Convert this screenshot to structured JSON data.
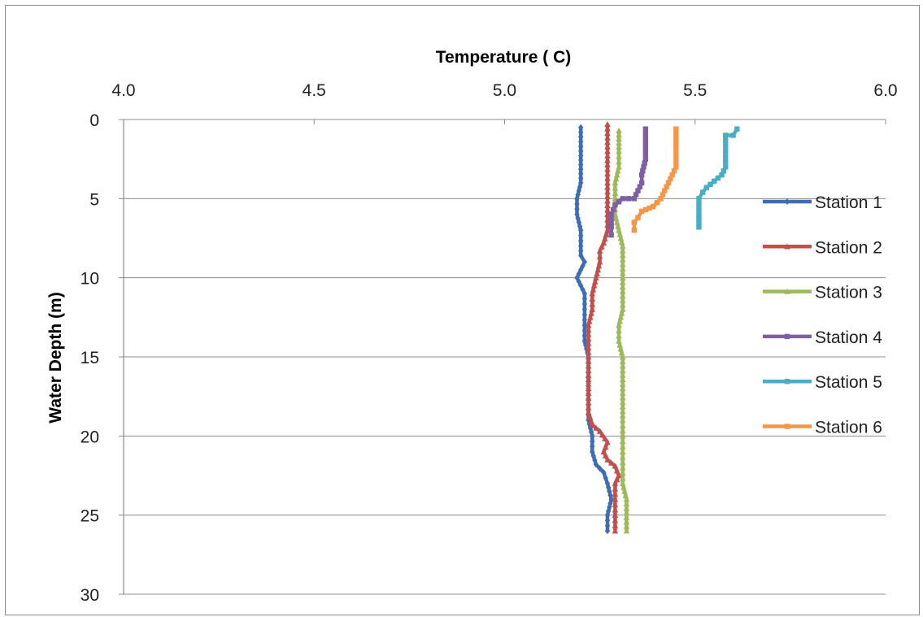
{
  "chart_data": {
    "type": "line",
    "xlabel": "Temperature ( C)",
    "ylabel": "Water Depth (m)",
    "xlim": [
      4.0,
      6.0
    ],
    "ylim": [
      0,
      30
    ],
    "x_axis_position": "top",
    "y_axis_inverted": true,
    "x_ticks": [
      "4.0",
      "4.5",
      "5.0",
      "5.5",
      "6.0"
    ],
    "y_ticks": [
      "0",
      "5",
      "10",
      "15",
      "20",
      "25",
      "30"
    ],
    "grid": "horizontal",
    "legend_position": "right",
    "series": [
      {
        "name": "Station 1",
        "color": "#3e6db5",
        "marker": "diamond",
        "points": [
          [
            5.2,
            0.5
          ],
          [
            5.2,
            2
          ],
          [
            5.2,
            4
          ],
          [
            5.19,
            5
          ],
          [
            5.19,
            6
          ],
          [
            5.2,
            7
          ],
          [
            5.2,
            8
          ],
          [
            5.2,
            8.6
          ],
          [
            5.21,
            9
          ],
          [
            5.2,
            9.5
          ],
          [
            5.19,
            10
          ],
          [
            5.2,
            10.5
          ],
          [
            5.21,
            11
          ],
          [
            5.21,
            12
          ],
          [
            5.21,
            13
          ],
          [
            5.21,
            14
          ],
          [
            5.22,
            15
          ],
          [
            5.22,
            16
          ],
          [
            5.22,
            17
          ],
          [
            5.22,
            18
          ],
          [
            5.22,
            19
          ],
          [
            5.23,
            20
          ],
          [
            5.23,
            21
          ],
          [
            5.24,
            21.8
          ],
          [
            5.26,
            22.3
          ],
          [
            5.27,
            23
          ],
          [
            5.28,
            24
          ],
          [
            5.27,
            25
          ],
          [
            5.27,
            26
          ]
        ]
      },
      {
        "name": "Station 2",
        "color": "#c0504d",
        "marker": "triangle",
        "points": [
          [
            5.27,
            0.3
          ],
          [
            5.27,
            2
          ],
          [
            5.27,
            4
          ],
          [
            5.27,
            6
          ],
          [
            5.27,
            7
          ],
          [
            5.26,
            7.8
          ],
          [
            5.25,
            8.3
          ],
          [
            5.25,
            9
          ],
          [
            5.24,
            10
          ],
          [
            5.23,
            11
          ],
          [
            5.23,
            12
          ],
          [
            5.22,
            13
          ],
          [
            5.22,
            15
          ],
          [
            5.22,
            17
          ],
          [
            5.22,
            18.5
          ],
          [
            5.23,
            19.3
          ],
          [
            5.25,
            19.7
          ],
          [
            5.27,
            20.4
          ],
          [
            5.26,
            21
          ],
          [
            5.27,
            21.5
          ],
          [
            5.29,
            21.9
          ],
          [
            5.3,
            22.5
          ],
          [
            5.29,
            23
          ],
          [
            5.29,
            24
          ],
          [
            5.29,
            25
          ],
          [
            5.29,
            26
          ]
        ]
      },
      {
        "name": "Station 3",
        "color": "#9bbb59",
        "marker": "triangle",
        "points": [
          [
            5.3,
            0.7
          ],
          [
            5.3,
            2
          ],
          [
            5.3,
            3
          ],
          [
            5.29,
            4
          ],
          [
            5.29,
            5
          ],
          [
            5.29,
            6
          ],
          [
            5.3,
            7
          ],
          [
            5.31,
            8
          ],
          [
            5.31,
            10
          ],
          [
            5.31,
            12
          ],
          [
            5.3,
            13
          ],
          [
            5.3,
            14
          ],
          [
            5.31,
            15
          ],
          [
            5.31,
            17
          ],
          [
            5.31,
            19
          ],
          [
            5.31,
            20
          ],
          [
            5.31,
            21
          ],
          [
            5.31,
            22
          ],
          [
            5.31,
            23
          ],
          [
            5.32,
            24
          ],
          [
            5.32,
            26
          ]
        ]
      },
      {
        "name": "Station 4",
        "color": "#7e5fa2",
        "marker": "square",
        "points": [
          [
            5.37,
            0.6
          ],
          [
            5.37,
            1.5
          ],
          [
            5.37,
            2.5
          ],
          [
            5.36,
            3.5
          ],
          [
            5.36,
            4
          ],
          [
            5.35,
            4.5
          ],
          [
            5.34,
            5
          ],
          [
            5.31,
            5
          ],
          [
            5.29,
            5.4
          ],
          [
            5.28,
            6
          ],
          [
            5.28,
            6.8
          ],
          [
            5.28,
            7.3
          ]
        ]
      },
      {
        "name": "Station 5",
        "color": "#4bacc6",
        "marker": "square",
        "points": [
          [
            5.61,
            0.6
          ],
          [
            5.6,
            1
          ],
          [
            5.58,
            1
          ],
          [
            5.58,
            2
          ],
          [
            5.58,
            3
          ],
          [
            5.57,
            3.5
          ],
          [
            5.55,
            3.9
          ],
          [
            5.53,
            4.3
          ],
          [
            5.52,
            4.6
          ],
          [
            5.51,
            5
          ],
          [
            5.51,
            6
          ],
          [
            5.51,
            6.8
          ]
        ]
      },
      {
        "name": "Station 6",
        "color": "#f79646",
        "marker": "square",
        "points": [
          [
            5.45,
            0.6
          ],
          [
            5.45,
            2
          ],
          [
            5.45,
            3
          ],
          [
            5.44,
            3.5
          ],
          [
            5.43,
            4
          ],
          [
            5.42,
            4.5
          ],
          [
            5.41,
            5
          ],
          [
            5.39,
            5.5
          ],
          [
            5.36,
            5.8
          ],
          [
            5.35,
            6.2
          ],
          [
            5.34,
            6.5
          ],
          [
            5.34,
            7
          ]
        ]
      }
    ]
  },
  "colors": {
    "gridline": "#8c8c8c",
    "frame": "#8c8c8c"
  }
}
